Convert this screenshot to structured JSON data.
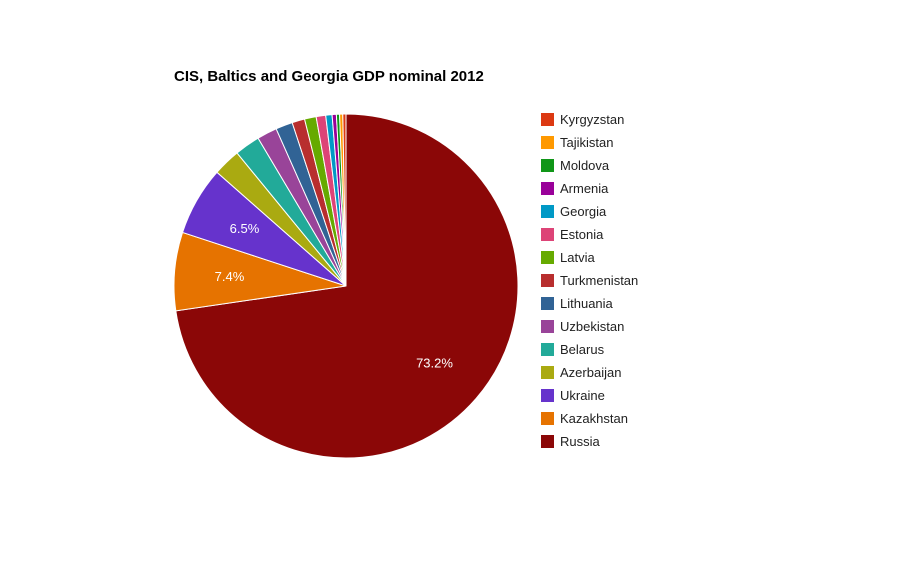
{
  "chart_data": {
    "type": "pie",
    "title": "CIS, Baltics and Georgia GDP nominal 2012",
    "legend_position": "right",
    "start_angle": "12 o'clock",
    "direction": "clockwise",
    "slices": [
      {
        "label": "Russia",
        "percent": 73.2,
        "color": "#8B0707",
        "value_label": "73.2%"
      },
      {
        "label": "Kazakhstan",
        "percent": 7.4,
        "color": "#E67300",
        "value_label": "7.4%"
      },
      {
        "label": "Ukraine",
        "percent": 6.5,
        "color": "#6633CC",
        "value_label": "6.5%"
      },
      {
        "label": "Azerbaijan",
        "percent": 2.6,
        "color": "#AAAA11",
        "value_label": ""
      },
      {
        "label": "Belarus",
        "percent": 2.4,
        "color": "#22AA99",
        "value_label": ""
      },
      {
        "label": "Uzbekistan",
        "percent": 1.9,
        "color": "#994499",
        "value_label": ""
      },
      {
        "label": "Lithuania",
        "percent": 1.6,
        "color": "#316395",
        "value_label": ""
      },
      {
        "label": "Turkmenistan",
        "percent": 1.2,
        "color": "#B82E2E",
        "value_label": ""
      },
      {
        "label": "Latvia",
        "percent": 1.1,
        "color": "#66AA00",
        "value_label": ""
      },
      {
        "label": "Estonia",
        "percent": 0.9,
        "color": "#DD4477",
        "value_label": ""
      },
      {
        "label": "Georgia",
        "percent": 0.6,
        "color": "#0099C6",
        "value_label": ""
      },
      {
        "label": "Armenia",
        "percent": 0.4,
        "color": "#990099",
        "value_label": ""
      },
      {
        "label": "Moldova",
        "percent": 0.3,
        "color": "#109618",
        "value_label": ""
      },
      {
        "label": "Tajikistan",
        "percent": 0.3,
        "color": "#FF9900",
        "value_label": ""
      },
      {
        "label": "Kyrgyzstan",
        "percent": 0.3,
        "color": "#DC3912",
        "value_label": ""
      }
    ],
    "legend_order": [
      "Kyrgyzstan",
      "Tajikistan",
      "Moldova",
      "Armenia",
      "Georgia",
      "Estonia",
      "Latvia",
      "Turkmenistan",
      "Lithuania",
      "Uzbekistan",
      "Belarus",
      "Azerbaijan",
      "Ukraine",
      "Kazakhstan",
      "Russia"
    ]
  }
}
